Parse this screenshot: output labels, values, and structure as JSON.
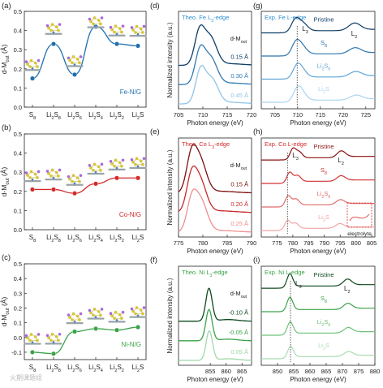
{
  "chart_data": [
    {
      "id": "a",
      "type": "line",
      "panel_label": "(a)",
      "ylabel": "d-M",
      "ylabel_sub": "out",
      "ylabel_unit": "(Å)",
      "categories": [
        "S8",
        "Li2S8",
        "Li2S6",
        "Li2S4",
        "Li2S2",
        "Li2S"
      ],
      "cat_main": [
        "S",
        "Li",
        "Li",
        "Li",
        "Li",
        "Li"
      ],
      "cat_sub1": [
        "8",
        "2",
        "2",
        "2",
        "2",
        "2"
      ],
      "cat_mid": [
        "",
        "S",
        "S",
        "S",
        "S",
        "S"
      ],
      "cat_sub2": [
        "",
        "8",
        "6",
        "4",
        "2",
        ""
      ],
      "ylim": [
        0,
        0.5
      ],
      "yticks": [
        "0.0",
        "0.1",
        "0.2",
        "0.3",
        "0.4",
        "0.5"
      ],
      "series": [
        {
          "name": "Fe-N/G",
          "values": [
            0.15,
            0.33,
            0.17,
            0.42,
            0.33,
            0.32
          ],
          "color": "#1f6fae"
        }
      ]
    },
    {
      "id": "b",
      "type": "line",
      "panel_label": "(b)",
      "ylabel": "d-M",
      "ylabel_sub": "out",
      "ylabel_unit": "(Å)",
      "categories": [
        "S8",
        "Li2S8",
        "Li2S6",
        "Li2S4",
        "Li2S2",
        "Li2S"
      ],
      "cat_main": [
        "S",
        "Li",
        "Li",
        "Li",
        "Li",
        "Li"
      ],
      "cat_sub1": [
        "8",
        "2",
        "2",
        "2",
        "2",
        "2"
      ],
      "cat_mid": [
        "",
        "S",
        "S",
        "S",
        "S",
        "S"
      ],
      "cat_sub2": [
        "",
        "8",
        "6",
        "4",
        "2",
        ""
      ],
      "ylim": [
        0,
        0.5
      ],
      "yticks": [
        "0.0",
        "0.1",
        "0.2",
        "0.3",
        "0.4",
        "0.5"
      ],
      "series": [
        {
          "name": "Co-N/G",
          "values": [
            0.21,
            0.21,
            0.19,
            0.24,
            0.27,
            0.27
          ],
          "color": "#d42a2a"
        }
      ]
    },
    {
      "id": "c",
      "type": "line",
      "panel_label": "(c)",
      "ylabel": "d-M",
      "ylabel_sub": "out",
      "ylabel_unit": "(Å)",
      "categories": [
        "S8",
        "Li2S8",
        "Li2S6",
        "Li2S4",
        "Li2S2",
        "Li2S"
      ],
      "cat_main": [
        "S",
        "Li",
        "Li",
        "Li",
        "Li",
        "Li"
      ],
      "cat_sub1": [
        "8",
        "2",
        "2",
        "2",
        "2",
        "2"
      ],
      "cat_mid": [
        "",
        "S",
        "S",
        "S",
        "S",
        "S"
      ],
      "cat_sub2": [
        "",
        "8",
        "6",
        "4",
        "2",
        ""
      ],
      "ylim": [
        -0.15,
        0.5
      ],
      "yticks": [
        "-0.1",
        "0.0",
        "0.1",
        "0.2",
        "0.3",
        "0.4",
        "0.5"
      ],
      "series": [
        {
          "name": "Ni-N/G",
          "values": [
            -0.1,
            -0.11,
            0.04,
            0.06,
            0.05,
            0.07
          ],
          "color": "#3aa348"
        }
      ]
    },
    {
      "id": "d",
      "type": "line",
      "panel_label": "(d)",
      "ylabel": "Normalized intensity (a.u.)",
      "xlabel": "Photon energy (eV)",
      "title_pre": "Theo.  Fe L",
      "title_sub": "3",
      "title_post": "-edge",
      "title_color": "#2e8fd0",
      "xlim": [
        705,
        720
      ],
      "xticks": [
        "705",
        "710",
        "715",
        "720"
      ],
      "legend_title": "d-M",
      "legend_title_sub": "out",
      "series": [
        {
          "name": "0.15 Å",
          "color": "#0d3d66",
          "offset": 0.66,
          "peak": 709.3,
          "ha": 1.0,
          "hb": 0.85,
          "sep": 2.2
        },
        {
          "name": "0.30 Å",
          "color": "#2f79b3",
          "offset": 0.33,
          "peak": 709.4,
          "ha": 1.0,
          "hb": 0.8,
          "sep": 2.2
        },
        {
          "name": "0.45 Å",
          "color": "#8fc4e8",
          "offset": 0.0,
          "peak": 709.5,
          "ha": 1.0,
          "hb": 0.75,
          "sep": 2.3
        }
      ]
    },
    {
      "id": "e",
      "type": "line",
      "panel_label": "(e)",
      "ylabel": "Normalized intensity (a.u.)",
      "xlabel": "Photon energy (eV)",
      "title_pre": "Theo.  Co L",
      "title_sub": "3",
      "title_post": "-edge",
      "title_color": "#d42a2a",
      "xlim": [
        775,
        790
      ],
      "xticks": [
        "775",
        "780",
        "785",
        "790"
      ],
      "legend_title": "d-M",
      "legend_title_sub": "out",
      "series": [
        {
          "name": "0.15 Å",
          "color": "#7a0f0f",
          "offset": 0.66,
          "peak": 777.6,
          "ha": 1.0,
          "hb": 0.98,
          "sep": 1.8
        },
        {
          "name": "0.20 Å",
          "color": "#c92828",
          "offset": 0.33,
          "peak": 777.6,
          "ha": 0.95,
          "hb": 0.95,
          "sep": 1.8
        },
        {
          "name": "0.25 Å",
          "color": "#f08e8e",
          "offset": 0.0,
          "peak": 777.7,
          "ha": 0.9,
          "hb": 0.92,
          "sep": 1.9
        }
      ]
    },
    {
      "id": "f",
      "type": "line",
      "panel_label": "(f)",
      "ylabel": "Normalized intensity (a.u.)",
      "xlabel": "Photon energy (eV)",
      "title_pre": "Theo.  Ni L",
      "title_sub": "3",
      "title_post": "-edge",
      "title_color": "#3aa348",
      "xlim": [
        845,
        868
      ],
      "xticks": [
        "855",
        "860",
        "865"
      ],
      "legend_title": "d-M",
      "legend_title_sub": "out",
      "series": [
        {
          "name": "-0.10 Å",
          "color": "#0e4a1f",
          "offset": 0.66,
          "peak": 854.6,
          "ha": 1.0,
          "hb": 0.0,
          "sep": 0
        },
        {
          "name": "-0.05 Å",
          "color": "#3aa348",
          "offset": 0.33,
          "peak": 854.6,
          "ha": 0.95,
          "hb": 0.0,
          "sep": 0
        },
        {
          "name": "0.05 Å",
          "color": "#9fd8a8",
          "offset": 0.0,
          "peak": 854.7,
          "ha": 0.9,
          "hb": 0.0,
          "sep": 0
        }
      ]
    },
    {
      "id": "g",
      "type": "line",
      "panel_label": "(g)",
      "xlabel": "Photon energy (eV)",
      "title_pre": "Exp.  Fe L-edge",
      "title_sub": "",
      "title_post": "",
      "title_color": "#2e8fd0",
      "xlim": [
        702,
        727
      ],
      "xticks": [
        "705",
        "710",
        "715",
        "720",
        "725"
      ],
      "edge_labels": [
        "L3",
        "L2"
      ],
      "series": [
        {
          "name": "Pristine",
          "color": "#0d3d66",
          "offset": 0.75,
          "l3": 709.5,
          "l3b": 711.2,
          "l2": 722.5,
          "a3": 0.55,
          "a2": 0.32
        },
        {
          "name": "S8",
          "color": "#2c74b0",
          "offset": 0.5,
          "l3": 709.6,
          "l3b": 711.0,
          "l2": 722.6,
          "a3": 0.55,
          "a2": 0.25
        },
        {
          "name": "Li2S6",
          "color": "#5fa6d8",
          "offset": 0.25,
          "l3": 709.8,
          "l3b": 711.0,
          "l2": 722.7,
          "a3": 0.5,
          "a2": 0.22
        },
        {
          "name": "Li2S",
          "color": "#a9d3f0",
          "offset": 0.0,
          "l3": 709.9,
          "l3b": 711.0,
          "l2": 722.8,
          "a3": 0.5,
          "a2": 0.2
        }
      ]
    },
    {
      "id": "h",
      "type": "line",
      "panel_label": "(h)",
      "xlabel": "Photon energy (eV)",
      "title_pre": "Exp.  Co L-edge",
      "title_sub": "",
      "title_post": "",
      "title_color": "#d42a2a",
      "xlim": [
        770,
        806
      ],
      "xticks": [
        "775",
        "780",
        "785",
        "790",
        "795",
        "800",
        "805"
      ],
      "edge_labels": [
        "L3",
        "L2"
      ],
      "inset_label": "electrolyte",
      "series": [
        {
          "name": "Pristine",
          "color": "#8a1111",
          "offset": 0.75,
          "l3": 780.0,
          "l3b": 782.0,
          "l2": 795.3,
          "a3": 0.45,
          "a2": 0.28
        },
        {
          "name": "S8",
          "color": "#d33232",
          "offset": 0.5,
          "l3": 779.0,
          "l3b": 781.5,
          "l2": 795.2,
          "a3": 0.45,
          "a2": 0.22
        },
        {
          "name": "Li2S6",
          "color": "#e06b6b",
          "offset": 0.25,
          "l3": 778.5,
          "l3b": 781.0,
          "l2": 795.0,
          "a3": 0.45,
          "a2": 0.2
        },
        {
          "name": "Li2S",
          "color": "#f3a5a5",
          "offset": 0.0,
          "l3": 778.3,
          "l3b": 780.8,
          "l2": 794.8,
          "a3": 0.4,
          "a2": 0.18
        }
      ]
    },
    {
      "id": "i",
      "type": "line",
      "panel_label": "(i)",
      "xlabel": "Photon energy (eV)",
      "title_pre": "Exp.  Ni L-edge",
      "title_sub": "",
      "title_post": "",
      "title_color": "#3aa348",
      "xlim": [
        845,
        880
      ],
      "xticks": [
        "850",
        "855",
        "860",
        "865",
        "870",
        "875",
        "880"
      ],
      "edge_labels": [
        "L3",
        "L2"
      ],
      "series": [
        {
          "name": "Pristine",
          "color": "#0e4a1f",
          "offset": 0.75,
          "l3": 853.8,
          "l3b": 0,
          "l2": 871.5,
          "a3": 0.6,
          "a2": 0.28
        },
        {
          "name": "S8",
          "color": "#3aa348",
          "offset": 0.5,
          "l3": 853.8,
          "l3b": 0,
          "l2": 871.6,
          "a3": 0.6,
          "a2": 0.25
        },
        {
          "name": "Li2S6",
          "color": "#6fc27a",
          "offset": 0.25,
          "l3": 853.9,
          "l3b": 0,
          "l2": 871.7,
          "a3": 0.55,
          "a2": 0.22
        },
        {
          "name": "Li2S",
          "color": "#a9dcb0",
          "offset": 0.0,
          "l3": 854.0,
          "l3b": 0,
          "l2": 871.8,
          "a3": 0.5,
          "a2": 0.2
        }
      ]
    }
  ],
  "watermark": "火期课题组"
}
